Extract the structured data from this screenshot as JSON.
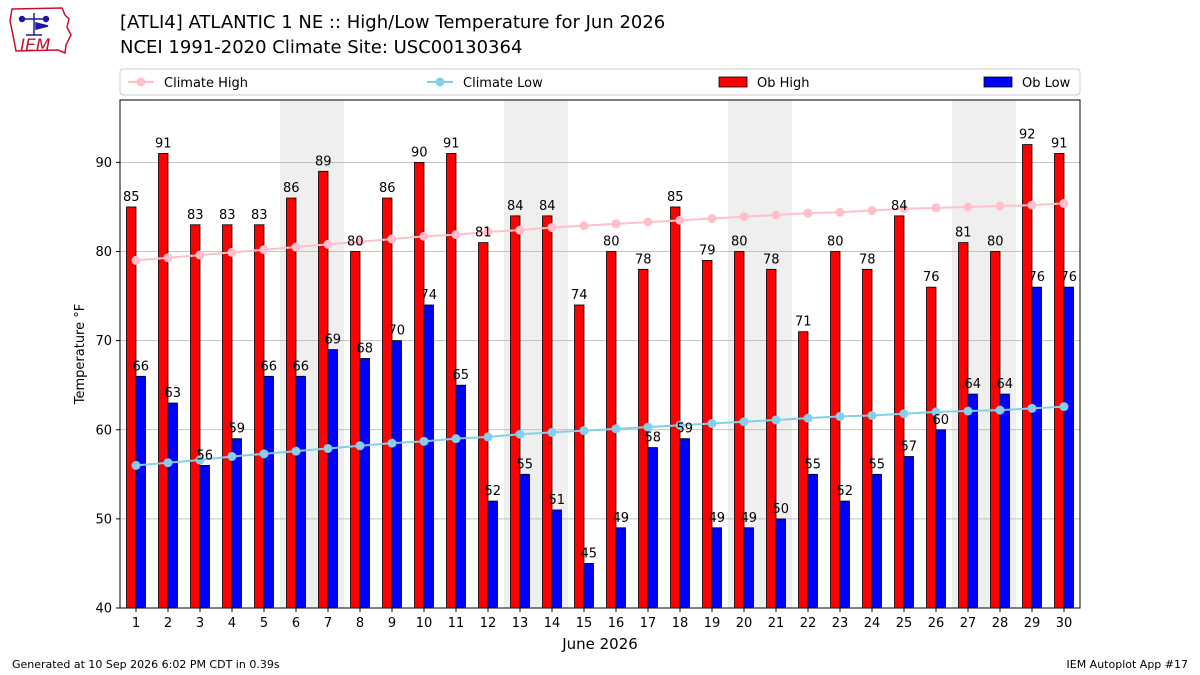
{
  "logo": {
    "text": "IEM",
    "color": "#c8102e"
  },
  "header": {
    "title_line1": "[ATLI4] ATLANTIC 1 NE :: High/Low Temperature for Jun 2026",
    "title_line2": "NCEI 1991-2020 Climate Site: USC00130364"
  },
  "footer": {
    "left": "Generated at 10 Sep 2026 6:02 PM CDT in 0.39s",
    "right": "IEM Autoplot App #17"
  },
  "chart_data": {
    "type": "bar",
    "xlabel": "June 2026",
    "ylabel": "Temperature °F",
    "ylim": [
      40,
      97
    ],
    "yticks": [
      40,
      50,
      60,
      70,
      80,
      90
    ],
    "grid": true,
    "legend_position": "top",
    "categories": [
      1,
      2,
      3,
      4,
      5,
      6,
      7,
      8,
      9,
      10,
      11,
      12,
      13,
      14,
      15,
      16,
      17,
      18,
      19,
      20,
      21,
      22,
      23,
      24,
      25,
      26,
      27,
      28,
      29,
      30
    ],
    "weekend_shading": [
      [
        6,
        7
      ],
      [
        13,
        14
      ],
      [
        20,
        21
      ],
      [
        27,
        28
      ]
    ],
    "series": [
      {
        "name": "Ob High",
        "type": "bar",
        "color": "#ff0000",
        "values": [
          85,
          91,
          83,
          83,
          83,
          86,
          89,
          80,
          86,
          90,
          91,
          81,
          84,
          84,
          74,
          80,
          78,
          85,
          79,
          80,
          78,
          71,
          80,
          78,
          84,
          76,
          81,
          80,
          92,
          91
        ]
      },
      {
        "name": "Ob Low",
        "type": "bar",
        "color": "#0000ff",
        "values": [
          66,
          63,
          56,
          59,
          66,
          66,
          69,
          68,
          70,
          74,
          65,
          52,
          55,
          51,
          45,
          49,
          58,
          59,
          49,
          49,
          50,
          55,
          52,
          55,
          57,
          60,
          64,
          64,
          76,
          76
        ]
      },
      {
        "name": "Climate High",
        "type": "line",
        "color": "#ffc0cb",
        "values": [
          79.0,
          79.3,
          79.6,
          79.9,
          80.2,
          80.5,
          80.8,
          81.1,
          81.4,
          81.7,
          81.9,
          82.2,
          82.4,
          82.7,
          82.9,
          83.1,
          83.3,
          83.5,
          83.7,
          83.9,
          84.1,
          84.3,
          84.4,
          84.6,
          84.8,
          84.9,
          85.0,
          85.1,
          85.2,
          85.4
        ]
      },
      {
        "name": "Climate Low",
        "type": "line",
        "color": "#87ceeb",
        "values": [
          56.0,
          56.3,
          56.6,
          57.0,
          57.3,
          57.6,
          57.9,
          58.2,
          58.5,
          58.7,
          59.0,
          59.2,
          59.5,
          59.7,
          59.9,
          60.1,
          60.3,
          60.5,
          60.7,
          60.9,
          61.1,
          61.3,
          61.5,
          61.6,
          61.8,
          62.0,
          62.1,
          62.2,
          62.4,
          62.6
        ]
      }
    ]
  }
}
